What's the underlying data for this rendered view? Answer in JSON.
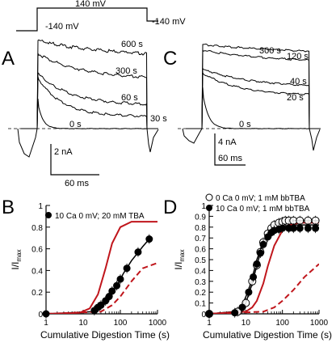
{
  "protocol": {
    "labels": {
      "hold_pre": "-140 mV",
      "step": "140 mV",
      "hold_post": "-140 mV"
    }
  },
  "panels": {
    "A": {
      "letter": "A",
      "trace_labels": [
        "600 s",
        "300 s",
        "60 s",
        "30 s",
        "0 s"
      ],
      "scale_current": "2 nA",
      "scale_time": "60 ms"
    },
    "C": {
      "letter": "C",
      "trace_labels": [
        "300 s",
        "120 s",
        "40 s",
        "20 s",
        "0 s"
      ],
      "scale_current": "4 nA",
      "scale_time": "60 ms"
    },
    "B": {
      "letter": "B",
      "legend": [
        "10 Ca 0 mV; 20 mM TBA"
      ]
    },
    "D": {
      "letter": "D",
      "legend": [
        "0 Ca 0 mV; 1 mM bbTBA",
        "10 Ca 0 mV; 1 mM bbTBA"
      ]
    }
  },
  "chart_data": [
    {
      "id": "B",
      "type": "scatter",
      "xlabel": "Cumulative Digestion Time (s)",
      "ylabel": "I/I",
      "ylabel_sub": "max",
      "xscale": "log",
      "xlim": [
        1,
        1000
      ],
      "ylim": [
        0,
        1
      ],
      "xticks": [
        1,
        10,
        100,
        1000
      ],
      "xtick_labels": [
        "1",
        "10",
        "100",
        "1000"
      ],
      "yticks": [
        0,
        0.2,
        0.4,
        0.6,
        0.8,
        1
      ],
      "ytick_labels": [
        "0",
        "0.2",
        "0.4",
        "0.6",
        "0.8",
        "1"
      ],
      "series": [
        {
          "name": "10 Ca 0 mV; 20 mM TBA",
          "marker": "filled-circle",
          "x": [
            1,
            20,
            25,
            30,
            40,
            50,
            60,
            80,
            100,
            150,
            300,
            600
          ],
          "y": [
            0,
            0.03,
            0.06,
            0.08,
            0.12,
            0.16,
            0.21,
            0.26,
            0.32,
            0.42,
            0.57,
            0.69
          ]
        }
      ],
      "curves": [
        {
          "style": "black-solid",
          "x": [
            1,
            20,
            30,
            50,
            80,
            120,
            200,
            400,
            600
          ],
          "y": [
            0,
            0.02,
            0.05,
            0.14,
            0.25,
            0.37,
            0.49,
            0.62,
            0.69
          ]
        },
        {
          "style": "red-solid",
          "x": [
            1,
            8,
            15,
            25,
            40,
            60,
            100,
            200,
            400,
            1000
          ],
          "y": [
            0,
            0.01,
            0.05,
            0.18,
            0.42,
            0.65,
            0.8,
            0.85,
            0.85,
            0.85
          ]
        },
        {
          "style": "red-dashed",
          "x": [
            1,
            30,
            60,
            100,
            200,
            400,
            1000
          ],
          "y": [
            0,
            0.02,
            0.08,
            0.16,
            0.3,
            0.42,
            0.47
          ]
        }
      ]
    },
    {
      "id": "D",
      "type": "scatter",
      "xlabel": "Cumulative Digestion Time (s)",
      "ylabel": "I/I",
      "ylabel_sub": "max",
      "xscale": "log",
      "xlim": [
        1,
        1000
      ],
      "ylim": [
        0,
        1
      ],
      "xticks": [
        1,
        10,
        100,
        1000
      ],
      "xtick_labels": [
        "1",
        "10",
        "100",
        "1000"
      ],
      "yticks": [
        0,
        0.1,
        0.2,
        0.3,
        0.4,
        0.5,
        0.6,
        0.7,
        0.8,
        0.9,
        1
      ],
      "ytick_labels": [
        "0",
        "0.1",
        "0.2",
        "0.3",
        "0.4",
        "0.5",
        "0.6",
        "0.7",
        "0.8",
        "0.9",
        "1"
      ],
      "series": [
        {
          "name": "0 Ca 0 mV; 1 mM bbTBA",
          "marker": "open-circle",
          "x": [
            1,
            6,
            10,
            15,
            20,
            25,
            30,
            40,
            50,
            60,
            80,
            100,
            120,
            150,
            200,
            300,
            500,
            800
          ],
          "y": [
            0,
            0.02,
            0.1,
            0.3,
            0.45,
            0.57,
            0.66,
            0.74,
            0.79,
            0.82,
            0.84,
            0.85,
            0.86,
            0.86,
            0.86,
            0.86,
            0.86,
            0.86
          ]
        },
        {
          "name": "10 Ca 0 mV; 1 mM bbTBA",
          "marker": "filled-circle",
          "x": [
            1,
            5,
            8,
            12,
            16,
            20,
            25,
            30,
            40,
            50,
            60,
            80,
            100,
            150,
            200,
            300,
            500,
            800
          ],
          "y": [
            0,
            0.01,
            0.06,
            0.2,
            0.34,
            0.46,
            0.56,
            0.64,
            0.71,
            0.75,
            0.77,
            0.78,
            0.79,
            0.79,
            0.79,
            0.79,
            0.79,
            0.79
          ]
        }
      ],
      "curves": [
        {
          "style": "black-solid",
          "x": [
            1,
            5,
            8,
            12,
            16,
            20,
            30,
            40,
            60,
            100,
            200,
            1000
          ],
          "y": [
            0,
            0.02,
            0.08,
            0.22,
            0.37,
            0.5,
            0.66,
            0.74,
            0.79,
            0.81,
            0.82,
            0.82
          ]
        },
        {
          "style": "black-solid",
          "x": [
            1,
            6,
            10,
            15,
            20,
            30,
            40,
            60,
            100,
            200,
            1000
          ],
          "y": [
            0,
            0.02,
            0.1,
            0.28,
            0.45,
            0.65,
            0.75,
            0.82,
            0.85,
            0.86,
            0.86
          ]
        },
        {
          "style": "red-solid",
          "x": [
            1,
            10,
            15,
            20,
            30,
            40,
            60,
            100,
            150,
            300,
            1000
          ],
          "y": [
            0,
            0.02,
            0.06,
            0.12,
            0.28,
            0.44,
            0.63,
            0.77,
            0.82,
            0.84,
            0.84
          ]
        },
        {
          "style": "red-dashed",
          "x": [
            1,
            30,
            60,
            100,
            200,
            400,
            1000
          ],
          "y": [
            0,
            0.02,
            0.06,
            0.12,
            0.22,
            0.34,
            0.46
          ]
        }
      ]
    }
  ]
}
